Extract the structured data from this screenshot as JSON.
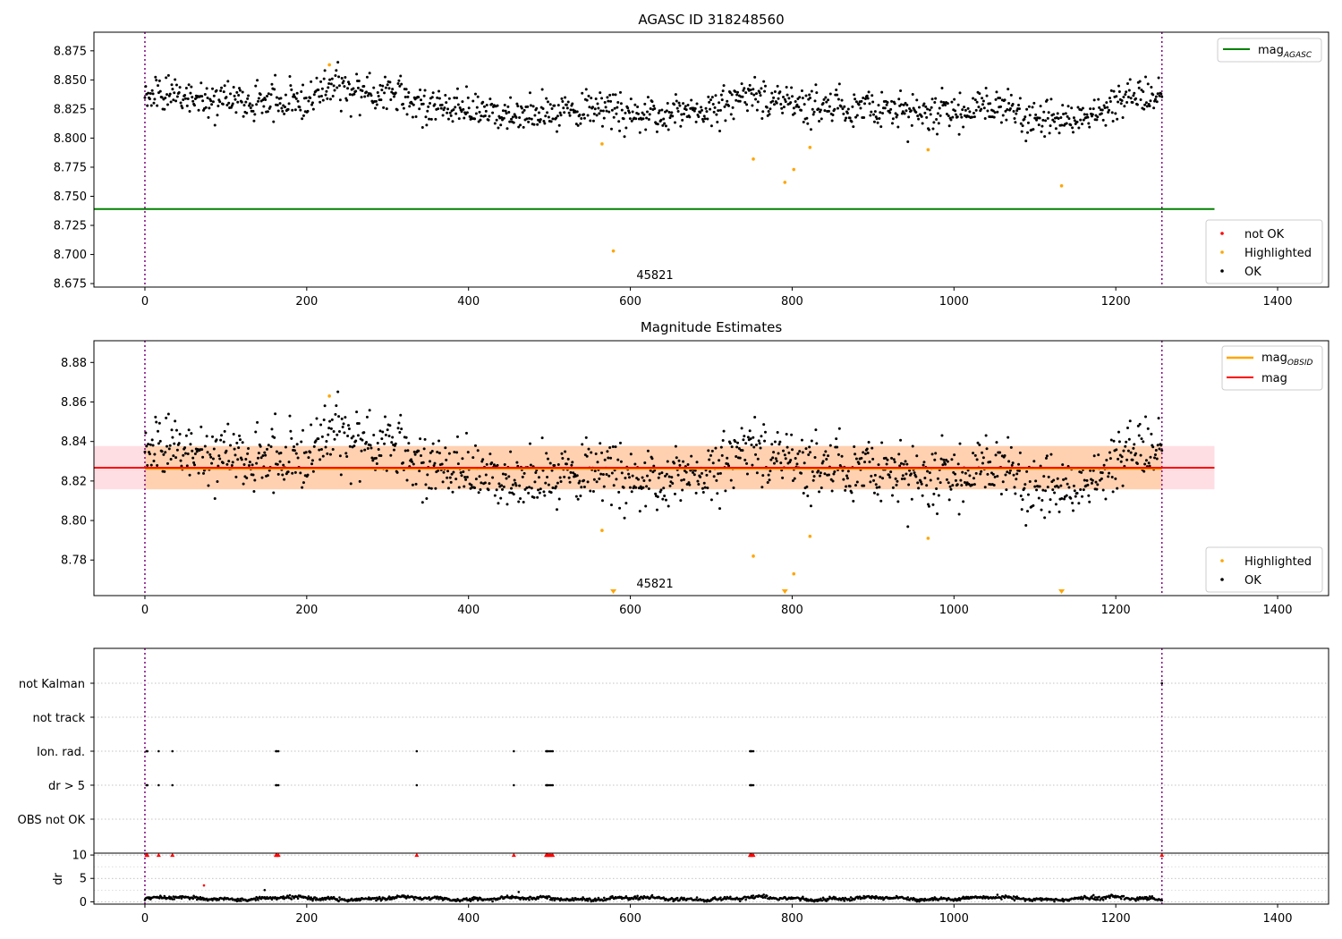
{
  "chart_data": [
    {
      "type": "scatter",
      "title": "AGASC ID 318248560",
      "annotation": "45821",
      "xlim": [
        -63,
        1463
      ],
      "ylim": [
        8.672,
        8.891
      ],
      "x_ticks": [
        0,
        200,
        400,
        600,
        800,
        1000,
        1200,
        1400
      ],
      "y_ticks": [
        8.675,
        8.7,
        8.725,
        8.75,
        8.775,
        8.8,
        8.825,
        8.85,
        8.875
      ],
      "y_tick_labels": [
        "8.675",
        "8.700",
        "8.725",
        "8.750",
        "8.775",
        "8.800",
        "8.825",
        "8.850",
        "8.875"
      ],
      "vlines": [
        0,
        1257
      ],
      "hline": {
        "name": "mag_AGASC",
        "y": 8.739,
        "x": [
          -63,
          1322
        ],
        "color": "#008000"
      },
      "legend_line": {
        "name": "mag",
        "sub": "AGASC"
      },
      "legend_points": [
        {
          "name": "not OK",
          "color": "#ff0000"
        },
        {
          "name": "Highlighted",
          "color": "#ffa500"
        },
        {
          "name": "OK",
          "color": "#000000"
        }
      ],
      "baseline_segments": [
        {
          "x": [
            0,
            120
          ],
          "y": [
            8.838,
            8.832
          ]
        },
        {
          "x": [
            120,
            200
          ],
          "y": [
            8.832,
            8.831
          ]
        },
        {
          "x": [
            200,
            240
          ],
          "y": [
            8.831,
            8.846
          ]
        },
        {
          "x": [
            240,
            340
          ],
          "y": [
            8.846,
            8.83
          ]
        },
        {
          "x": [
            340,
            460
          ],
          "y": [
            8.83,
            8.818
          ]
        },
        {
          "x": [
            460,
            560
          ],
          "y": [
            8.818,
            8.826
          ]
        },
        {
          "x": [
            560,
            620
          ],
          "y": [
            8.826,
            8.82
          ]
        },
        {
          "x": [
            620,
            700
          ],
          "y": [
            8.82,
            8.825
          ]
        },
        {
          "x": [
            700,
            740
          ],
          "y": [
            8.825,
            8.838
          ]
        },
        {
          "x": [
            740,
            800
          ],
          "y": [
            8.838,
            8.828
          ]
        },
        {
          "x": [
            800,
            980
          ],
          "y": [
            8.828,
            8.822
          ]
        },
        {
          "x": [
            980,
            1040
          ],
          "y": [
            8.822,
            8.826
          ]
        },
        {
          "x": [
            1040,
            1150
          ],
          "y": [
            8.826,
            8.815
          ]
        },
        {
          "x": [
            1150,
            1200
          ],
          "y": [
            8.815,
            8.832
          ]
        },
        {
          "x": [
            1200,
            1257
          ],
          "y": [
            8.832,
            8.836
          ]
        }
      ],
      "ok_count": 1250,
      "ok_scatter": 0.01,
      "highlighted": [
        [
          228,
          8.863
        ],
        [
          565,
          8.795
        ],
        [
          579,
          8.703
        ],
        [
          752,
          8.782
        ],
        [
          791,
          8.762
        ],
        [
          802,
          8.773
        ],
        [
          822,
          8.792
        ],
        [
          968,
          8.79
        ],
        [
          1133,
          8.759
        ]
      ]
    },
    {
      "type": "scatter",
      "title": "Magnitude Estimates",
      "annotation": "45821",
      "xlim": [
        -63,
        1463
      ],
      "ylim": [
        8.762,
        8.891
      ],
      "x_ticks": [
        0,
        200,
        400,
        600,
        800,
        1000,
        1200,
        1400
      ],
      "y_ticks": [
        8.78,
        8.8,
        8.82,
        8.84,
        8.86,
        8.88
      ],
      "y_tick_labels": [
        "8.78",
        "8.80",
        "8.82",
        "8.84",
        "8.86",
        "8.88"
      ],
      "vlines": [
        0,
        1257
      ],
      "mag": {
        "name": "mag",
        "y": 8.8267,
        "x": [
          -63,
          1322
        ],
        "band": [
          8.8158,
          8.8377
        ],
        "color": "#ff0000"
      },
      "mag_obsid": {
        "name": "mag_OBSID",
        "y": 8.8264,
        "x": [
          0,
          1257
        ],
        "band": [
          8.8158,
          8.8377
        ],
        "color": "#ffa500"
      },
      "legend_lines": [
        {
          "name": "mag",
          "sub": "OBSID",
          "color": "#ffa500"
        },
        {
          "name": "mag",
          "sub": "",
          "color": "#ff0000"
        }
      ],
      "legend_points": [
        {
          "name": "Highlighted",
          "color": "#ffa500"
        },
        {
          "name": "OK",
          "color": "#000000"
        }
      ],
      "highlighted": [
        [
          228,
          8.863
        ],
        [
          565,
          8.795
        ],
        [
          752,
          8.782
        ],
        [
          802,
          8.773
        ],
        [
          822,
          8.792
        ],
        [
          968,
          8.791
        ]
      ],
      "offscale_markers": [
        579,
        791,
        1133
      ]
    },
    {
      "type": "scatter",
      "ylabel": "",
      "xlim": [
        -63,
        1463
      ],
      "categories": [
        "not Kalman",
        "not track",
        "Ion. rad.",
        "dr > 5",
        "OBS not OK"
      ],
      "vlines": [
        0,
        1257
      ],
      "flags": {
        "not Kalman": [
          1257
        ],
        "not track": [],
        "Ion. rad.": [
          2,
          3,
          17,
          34,
          162,
          163,
          165,
          336,
          456,
          496,
          497,
          498,
          500,
          502,
          504,
          748,
          749,
          750,
          752
        ],
        "dr > 5": [
          2,
          3,
          17,
          34,
          162,
          163,
          165,
          336,
          456,
          496,
          497,
          498,
          500,
          502,
          504,
          748,
          749,
          750,
          752
        ],
        "OBS not OK": []
      }
    },
    {
      "type": "scatter",
      "ylabel": "dr",
      "xlim": [
        -63,
        1463
      ],
      "ylim": [
        -0.5,
        10.4
      ],
      "x_ticks": [
        0,
        200,
        400,
        600,
        800,
        1000,
        1200,
        1400
      ],
      "y_ticks": [
        0,
        5,
        10
      ],
      "vlines": [
        0,
        1257
      ],
      "dr_capped": [
        2,
        3,
        17,
        34,
        162,
        163,
        165,
        336,
        456,
        496,
        497,
        498,
        500,
        502,
        504,
        748,
        749,
        750,
        752,
        1257
      ],
      "dr_outliers": [
        [
          73,
          3.5
        ],
        [
          148,
          2.5
        ],
        [
          462,
          2.1
        ]
      ],
      "dr_count": 1250,
      "dr_level": 0.7
    }
  ]
}
